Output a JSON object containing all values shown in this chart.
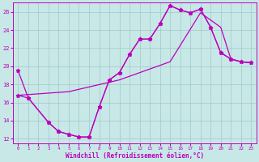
{
  "xlabel": "Windchill (Refroidissement éolien,°C)",
  "bg_color": "#c8e8e8",
  "grid_color": "#a0c8c8",
  "line_color": "#bb00bb",
  "xlim": [
    -0.5,
    23.5
  ],
  "ylim": [
    11.5,
    27.0
  ],
  "yticks": [
    12,
    14,
    16,
    18,
    20,
    22,
    24,
    26
  ],
  "xticks": [
    0,
    1,
    2,
    3,
    4,
    5,
    6,
    7,
    8,
    9,
    10,
    11,
    12,
    13,
    14,
    15,
    16,
    17,
    18,
    19,
    20,
    21,
    22,
    23
  ],
  "line1_x": [
    0,
    1,
    3,
    4,
    5,
    6,
    7,
    8,
    9,
    10,
    11,
    12,
    13,
    14,
    15,
    16,
    17,
    18,
    19,
    20,
    21,
    22,
    23
  ],
  "line1_y": [
    19.5,
    16.5,
    13.8,
    12.8,
    12.5,
    12.2,
    12.2,
    15.5,
    18.5,
    19.3,
    21.3,
    23.0,
    23.0,
    24.7,
    26.7,
    26.2,
    25.9,
    26.3,
    24.3,
    21.5,
    20.8,
    20.5,
    20.4
  ],
  "line2_x": [
    0,
    1,
    3,
    4,
    5,
    6,
    7,
    8,
    9,
    10,
    11,
    12,
    13,
    14,
    15,
    16,
    17,
    18,
    19,
    20,
    21,
    22,
    23
  ],
  "line2_y": [
    16.8,
    16.5,
    13.8,
    12.8,
    12.5,
    12.2,
    12.2,
    15.5,
    18.5,
    19.3,
    21.3,
    23.0,
    23.0,
    24.7,
    26.7,
    26.2,
    25.9,
    26.3,
    24.3,
    21.5,
    20.8,
    20.5,
    20.4
  ],
  "line3_x": [
    0,
    5,
    10,
    15,
    18,
    20,
    21,
    22,
    23
  ],
  "line3_y": [
    16.8,
    17.2,
    18.5,
    20.5,
    25.9,
    24.3,
    20.8,
    20.5,
    20.4
  ]
}
